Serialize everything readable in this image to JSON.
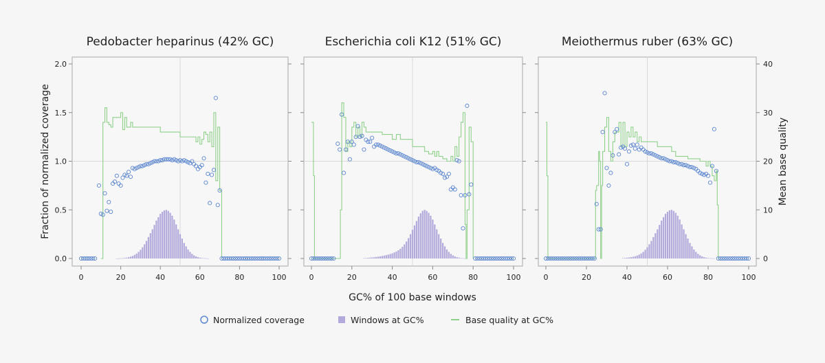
{
  "legend": {
    "coverage": "Normalized coverage",
    "windows": "Windows at GC%",
    "quality": "Base quality at GC%"
  },
  "colors": {
    "coverage": "#5b86d0",
    "windows": "#b3aadb",
    "quality": "#8fd08a",
    "grid": "#d8d8d8",
    "frame": "#b5b5b5",
    "plot_bg": "#f7f7f7"
  },
  "chart_data": [
    {
      "type": "scatter+bar+line",
      "title": "Pedobacter heparinus (42% GC)",
      "xlabel": "GC% of 100 base windows",
      "ylabel": "Fraction of normalized coverage",
      "ylabel_right": "Mean base quality",
      "xlim": [
        0,
        100
      ],
      "ylim": [
        0,
        2.0
      ],
      "ylim_right": [
        0,
        40
      ],
      "xticks": [
        0,
        20,
        40,
        60,
        80,
        100
      ],
      "yticks": [
        "0.0",
        "0.5",
        "1.0",
        "1.5",
        "2.0"
      ],
      "yticks_right": [
        0,
        10,
        20,
        30,
        40
      ],
      "grid_lines": {
        "x": 50,
        "y": 1.0
      },
      "coverage": [
        0,
        0,
        0,
        0,
        0,
        0,
        0,
        0,
        null,
        0.75,
        0.46,
        0.45,
        0.67,
        0.49,
        0.58,
        0.48,
        0.77,
        0.79,
        0.85,
        0.77,
        0.75,
        0.83,
        0.86,
        0.85,
        0.89,
        0.84,
        0.93,
        0.92,
        0.93,
        0.94,
        0.95,
        0.95,
        0.96,
        0.97,
        0.97,
        0.98,
        0.99,
        1.0,
        1.0,
        1.0,
        1.01,
        1.01,
        1.02,
        1.02,
        1.02,
        1.02,
        1.01,
        1.02,
        1.01,
        1.0,
        1.01,
        1.0,
        1.01,
        1.0,
        0.99,
        0.98,
        1.0,
        0.97,
        0.95,
        0.92,
        0.94,
        0.96,
        1.03,
        0.78,
        0.87,
        0.57,
        0.86,
        0.91,
        1.65,
        0.55,
        0.7,
        0,
        0,
        0,
        0,
        0,
        0,
        0,
        0,
        0,
        0,
        0,
        0,
        0,
        0,
        0,
        0,
        0,
        0,
        0,
        0,
        0,
        0,
        0,
        0,
        0,
        0,
        0,
        0,
        0,
        0
      ],
      "windows": {
        "x_start": 18,
        "values": [
          0.001,
          0.001,
          0.002,
          0.004,
          0.006,
          0.009,
          0.013,
          0.019,
          0.026,
          0.037,
          0.05,
          0.068,
          0.089,
          0.115,
          0.146,
          0.181,
          0.22,
          0.26,
          0.3,
          0.345,
          0.39,
          0.425,
          0.46,
          0.48,
          0.495,
          0.5,
          0.49,
          0.47,
          0.44,
          0.4,
          0.35,
          0.3,
          0.25,
          0.205,
          0.16,
          0.125,
          0.093,
          0.068,
          0.048,
          0.033,
          0.022,
          0.014,
          0.009,
          0.005,
          0.003,
          0.002,
          0.001
        ]
      },
      "quality": [
        [
          10,
          0
        ],
        [
          11,
          28
        ],
        [
          12,
          31
        ],
        [
          13,
          28
        ],
        [
          14,
          27.5
        ],
        [
          15,
          27
        ],
        [
          16,
          29
        ],
        [
          17,
          29
        ],
        [
          20,
          30
        ],
        [
          21,
          26.5
        ],
        [
          22,
          29
        ],
        [
          23,
          27
        ],
        [
          25,
          28
        ],
        [
          26,
          27
        ],
        [
          35,
          27
        ],
        [
          40,
          26
        ],
        [
          50,
          25
        ],
        [
          58,
          24
        ],
        [
          59,
          25
        ],
        [
          60,
          23.5
        ],
        [
          61,
          24.5
        ],
        [
          62,
          26
        ],
        [
          63,
          25.5
        ],
        [
          64,
          24
        ],
        [
          65,
          26
        ],
        [
          66,
          23
        ],
        [
          67,
          30
        ],
        [
          68,
          16
        ],
        [
          69,
          27
        ],
        [
          70,
          14
        ],
        [
          71,
          0
        ]
      ]
    },
    {
      "type": "scatter+bar+line",
      "title": "Escherichia coli K12 (51% GC)",
      "xlim": [
        0,
        100
      ],
      "ylim": [
        0,
        2.0
      ],
      "ylim_right": [
        0,
        40
      ],
      "xticks": [
        0,
        20,
        40,
        60,
        80,
        100
      ],
      "grid_lines": {
        "x": 50,
        "y": 1.0
      },
      "coverage": [
        0,
        0,
        0,
        0,
        0,
        0,
        0,
        0,
        0,
        0,
        0,
        0,
        null,
        1.18,
        1.12,
        1.48,
        0.88,
        1.12,
        1.2,
        1.02,
        1.2,
        1.17,
        1.25,
        1.36,
        1.25,
        1.26,
        1.12,
        1.22,
        1.2,
        1.2,
        1.24,
        1.15,
        1.17,
        1.17,
        1.16,
        1.15,
        1.14,
        1.13,
        1.12,
        1.11,
        1.1,
        1.09,
        1.08,
        1.08,
        1.07,
        1.06,
        1.05,
        1.04,
        1.03,
        1.02,
        1.01,
        1.0,
        0.99,
        0.99,
        0.98,
        0.97,
        0.96,
        0.95,
        0.94,
        0.93,
        0.92,
        0.93,
        0.91,
        0.9,
        0.88,
        0.87,
        0.83,
        0.84,
        0.87,
        0.71,
        0.73,
        0.71,
        1.01,
        1.0,
        0.65,
        0.31,
        0.65,
        1.57,
        0.66,
        0.76,
        null,
        0,
        0,
        0,
        0,
        0,
        0,
        0,
        0,
        0,
        0,
        0,
        0,
        0,
        0,
        0,
        0,
        0,
        0,
        0,
        0
      ],
      "windows": {
        "x_start": 26,
        "values": [
          0.004,
          0.005,
          0.007,
          0.009,
          0.011,
          0.013,
          0.016,
          0.019,
          0.022,
          0.026,
          0.03,
          0.035,
          0.04,
          0.046,
          0.053,
          0.062,
          0.072,
          0.085,
          0.1,
          0.12,
          0.145,
          0.175,
          0.21,
          0.25,
          0.295,
          0.34,
          0.385,
          0.43,
          0.465,
          0.49,
          0.5,
          0.49,
          0.47,
          0.44,
          0.4,
          0.35,
          0.3,
          0.25,
          0.205,
          0.16,
          0.125,
          0.093,
          0.068,
          0.048,
          0.033,
          0.022,
          0.014,
          0.009,
          0.005,
          0.003,
          0.002,
          0.001
        ]
      },
      "quality": [
        [
          0,
          28
        ],
        [
          1,
          17
        ],
        [
          1.5,
          0
        ],
        [
          14,
          0
        ],
        [
          14.3,
          10
        ],
        [
          15,
          32
        ],
        [
          16,
          29
        ],
        [
          17,
          22
        ],
        [
          18,
          24
        ],
        [
          19,
          23
        ],
        [
          20,
          27
        ],
        [
          21,
          28
        ],
        [
          22,
          25
        ],
        [
          23,
          27
        ],
        [
          24,
          25
        ],
        [
          25,
          28
        ],
        [
          26,
          27
        ],
        [
          27,
          26
        ],
        [
          35,
          25.5
        ],
        [
          40,
          24.5
        ],
        [
          42,
          25.5
        ],
        [
          44,
          24.5
        ],
        [
          50,
          23
        ],
        [
          56,
          22
        ],
        [
          58,
          21.5
        ],
        [
          60,
          22
        ],
        [
          61,
          21
        ],
        [
          62,
          22
        ],
        [
          63,
          21
        ],
        [
          65,
          20.5
        ],
        [
          67,
          20
        ],
        [
          69,
          21
        ],
        [
          70,
          20
        ],
        [
          71,
          23
        ],
        [
          72,
          21
        ],
        [
          73,
          25
        ],
        [
          74,
          28
        ],
        [
          75,
          30
        ],
        [
          76,
          7
        ],
        [
          76.5,
          0
        ],
        [
          77,
          10
        ],
        [
          78,
          27
        ],
        [
          79,
          24
        ],
        [
          80,
          0
        ]
      ]
    },
    {
      "type": "scatter+bar+line",
      "title": "Meiothermus ruber (63% GC)",
      "xlim": [
        0,
        100
      ],
      "ylim": [
        0,
        2.0
      ],
      "ylim_right": [
        0,
        40
      ],
      "xticks": [
        0,
        20,
        40,
        60,
        80,
        100
      ],
      "grid_lines": {
        "x": 50,
        "y": 1.0
      },
      "coverage": [
        0,
        0,
        0,
        0,
        0,
        0,
        0,
        0,
        0,
        0,
        0,
        0,
        0,
        0,
        0,
        0,
        0,
        0,
        0,
        0,
        0,
        0,
        0,
        0,
        0,
        0.56,
        0.3,
        0.3,
        1.3,
        1.7,
        0.93,
        0.75,
        0.88,
        1.06,
        1.3,
        1.33,
        1.07,
        1.14,
        1.15,
        1.13,
        0.97,
        1.1,
        1.16,
        1.17,
        1.13,
        1.17,
        1.12,
        1.14,
        1.12,
        1.1,
        1.09,
        1.08,
        1.08,
        1.07,
        1.06,
        1.05,
        1.04,
        1.03,
        1.03,
        1.02,
        1.01,
        1.0,
        1.0,
        0.99,
        0.99,
        0.98,
        0.97,
        0.97,
        0.96,
        0.96,
        0.95,
        0.94,
        0.94,
        0.93,
        0.92,
        0.9,
        0.88,
        0.87,
        0.86,
        0.87,
        0.85,
        0.78,
        0.95,
        1.33,
        0.9,
        0,
        0,
        0,
        0,
        0,
        0,
        0,
        0,
        0,
        0,
        0,
        0,
        0,
        0,
        0,
        0
      ],
      "windows": {
        "x_start": 38,
        "values": [
          0.004,
          0.006,
          0.008,
          0.011,
          0.014,
          0.018,
          0.023,
          0.03,
          0.04,
          0.052,
          0.068,
          0.089,
          0.115,
          0.146,
          0.181,
          0.22,
          0.26,
          0.3,
          0.345,
          0.39,
          0.425,
          0.46,
          0.48,
          0.495,
          0.5,
          0.49,
          0.47,
          0.44,
          0.4,
          0.35,
          0.3,
          0.25,
          0.205,
          0.16,
          0.125,
          0.093,
          0.068,
          0.048,
          0.033,
          0.022,
          0.014,
          0.009,
          0.005,
          0.003,
          0.002,
          0.001
        ]
      },
      "quality": [
        [
          0,
          28
        ],
        [
          0.5,
          17
        ],
        [
          1,
          0
        ],
        [
          24,
          0
        ],
        [
          24.5,
          14
        ],
        [
          25,
          15
        ],
        [
          26,
          22
        ],
        [
          26.5,
          20
        ],
        [
          27,
          0
        ],
        [
          27.5,
          15
        ],
        [
          28,
          22
        ],
        [
          29,
          27
        ],
        [
          30,
          29
        ],
        [
          31,
          22
        ],
        [
          32,
          20
        ],
        [
          33,
          24
        ],
        [
          34,
          26
        ],
        [
          36,
          28
        ],
        [
          37,
          23
        ],
        [
          38,
          28
        ],
        [
          39,
          23
        ],
        [
          40,
          26
        ],
        [
          41,
          25
        ],
        [
          42,
          27
        ],
        [
          43,
          25
        ],
        [
          44,
          26
        ],
        [
          45,
          24
        ],
        [
          46,
          25
        ],
        [
          47,
          24
        ],
        [
          55,
          23
        ],
        [
          62,
          22
        ],
        [
          64,
          21
        ],
        [
          70,
          20.5
        ],
        [
          76,
          20
        ],
        [
          79,
          19
        ],
        [
          80,
          20
        ],
        [
          81,
          19
        ],
        [
          82,
          17
        ],
        [
          83,
          16
        ],
        [
          84,
          18
        ],
        [
          84.5,
          11
        ],
        [
          85,
          0
        ]
      ]
    }
  ]
}
